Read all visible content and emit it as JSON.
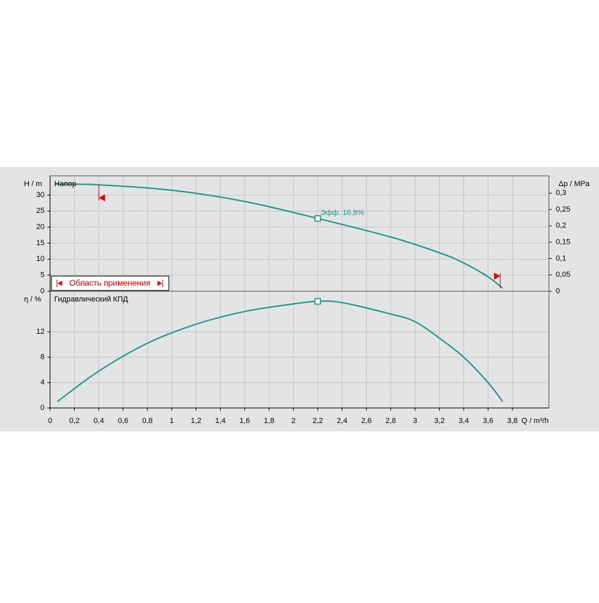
{
  "chart_data": [
    {
      "type": "line",
      "x": [
        0.04,
        0.4,
        1.0,
        1.6,
        2.2,
        2.8,
        3.2,
        3.4,
        3.6,
        3.72
      ],
      "series": [
        {
          "name": "Напор",
          "color": "#1a9a8a",
          "values": [
            33.4,
            33.2,
            31.5,
            28.0,
            22.7,
            16.9,
            12.0,
            8.8,
            4.5,
            0.9
          ]
        }
      ],
      "xlim": [
        0,
        4.1
      ],
      "ylim": [
        0,
        36
      ],
      "yticks": [
        0,
        5,
        10,
        15,
        20,
        25,
        30
      ],
      "y2lim": [
        0,
        0.353
      ],
      "y2ticks": [
        0,
        {
          "value": 0.05,
          "label": "0,05"
        },
        {
          "value": 0.1,
          "label": "0,1"
        },
        {
          "value": 0.15,
          "label": "0,15"
        },
        {
          "value": 0.2,
          "label": "0,2"
        },
        {
          "value": 0.25,
          "label": "0,25"
        },
        {
          "value": 0.3,
          "label": "0,3"
        }
      ],
      "y_label": "H / m",
      "y2_label": "Δp / MPa",
      "annotation": "Эфф.  16,8%",
      "range_label": "Область применения",
      "operating_range": [
        0.4,
        3.7
      ],
      "range_color": "#e00000",
      "grid": true
    },
    {
      "type": "line",
      "x": [
        0.06,
        0.4,
        0.8,
        1.2,
        1.6,
        2.0,
        2.2,
        2.4,
        2.8,
        3.0,
        3.2,
        3.4,
        3.6,
        3.72
      ],
      "series": [
        {
          "name": "Гидравлический КПД",
          "color": "#1a9a8a",
          "values": [
            1.0,
            5.8,
            10.2,
            13.2,
            15.2,
            16.4,
            16.8,
            16.6,
            14.8,
            13.6,
            11,
            8,
            4,
            1.0
          ]
        }
      ],
      "xlim": [
        0,
        4.1
      ],
      "xticks": [
        0,
        {
          "value": 0.2,
          "label": "0,2"
        },
        {
          "value": 0.4,
          "label": "0,4"
        },
        {
          "value": 0.6,
          "label": "0,6"
        },
        {
          "value": 0.8,
          "label": "0,8"
        },
        1,
        {
          "value": 1.2,
          "label": "1,2"
        },
        {
          "value": 1.4,
          "label": "1,4"
        },
        {
          "value": 1.6,
          "label": "1,6"
        },
        {
          "value": 1.8,
          "label": "1,8"
        },
        2,
        {
          "value": 2.2,
          "label": "2,2"
        },
        {
          "value": 2.4,
          "label": "2,4"
        },
        {
          "value": 2.6,
          "label": "2,6"
        },
        {
          "value": 2.8,
          "label": "2,8"
        },
        3,
        {
          "value": 3.2,
          "label": "3,2"
        },
        {
          "value": 3.4,
          "label": "3,4"
        },
        {
          "value": 3.6,
          "label": "3,6"
        },
        {
          "value": 3.8,
          "label": "3,8"
        }
      ],
      "ylim": [
        0,
        18.4
      ],
      "yticks": [
        0,
        4,
        8,
        12
      ],
      "y_label": "η / %",
      "x_label": "Q / m³/h",
      "grid": true
    }
  ]
}
